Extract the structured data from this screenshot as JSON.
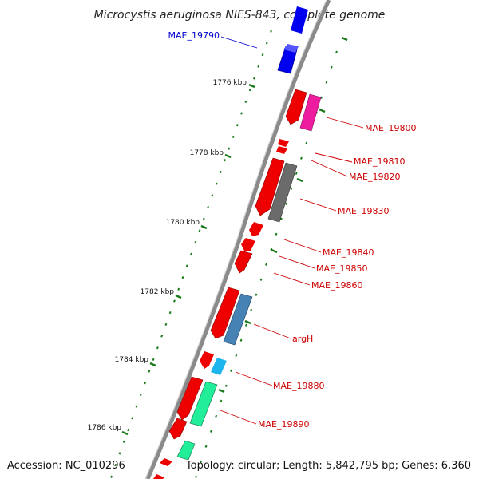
{
  "title": "Microcystis aeruginosa NIES-843, complete genome",
  "footer": {
    "accession": "Accession: NC_010296",
    "summary": "Topology: circular; Length: 5,842,795 bp; Genes: 6,360"
  },
  "colors": {
    "backbone": "#8a8a8a",
    "tick": "#1a7a1a",
    "label_red": "#cc0000",
    "label_blue": "#0000cc"
  },
  "ticks": [
    "1776 kbp",
    "1778 kbp",
    "1780 kbp",
    "1782 kbp",
    "1784 kbp",
    "1786 kbp"
  ],
  "genes": [
    {
      "name": "MAE_19790",
      "color": "#0000ee",
      "label_color": "#0000cc"
    },
    {
      "name": "MAE_19800",
      "color": "#ee1c9e",
      "label_color": "#cc0000"
    },
    {
      "name": "MAE_19810",
      "color": "#ee0000",
      "label_color": "#cc0000"
    },
    {
      "name": "MAE_19820",
      "color": "#ee0000",
      "label_color": "#cc0000"
    },
    {
      "name": "MAE_19830",
      "color": "#6b6b6b",
      "label_color": "#cc0000"
    },
    {
      "name": "MAE_19840",
      "color": "#ee0000",
      "label_color": "#cc0000"
    },
    {
      "name": "MAE_19850",
      "color": "#ee0000",
      "label_color": "#cc0000"
    },
    {
      "name": "MAE_19860",
      "color": "#ee0000",
      "label_color": "#cc0000"
    },
    {
      "name": "argH",
      "color": "#4682b4",
      "label_color": "#cc0000"
    },
    {
      "name": "MAE_19880",
      "color": "#1eb4ee",
      "label_color": "#cc0000"
    },
    {
      "name": "MAE_19890",
      "color": "#22ee99",
      "label_color": "#cc0000"
    }
  ]
}
